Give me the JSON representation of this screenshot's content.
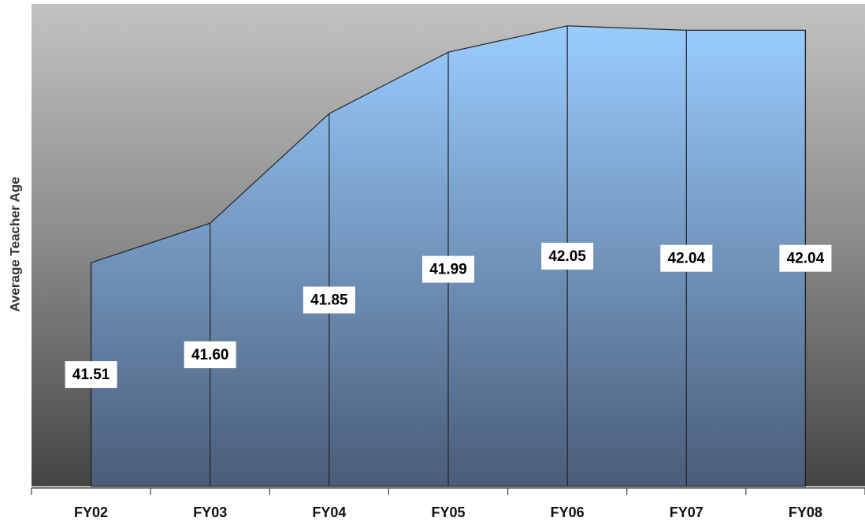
{
  "chart_data": {
    "type": "area",
    "y_label": "Average Teacher Age",
    "categories": [
      "FY02",
      "FY03",
      "FY04",
      "FY05",
      "FY06",
      "FY07",
      "FY08"
    ],
    "values": [
      41.51,
      41.6,
      41.85,
      41.99,
      42.05,
      42.04,
      42.04
    ],
    "value_labels": [
      "41.51",
      "41.60",
      "41.85",
      "41.99",
      "42.05",
      "42.04",
      "42.04"
    ],
    "color": "#99ccff",
    "ylim": [
      41.0,
      42.1
    ]
  }
}
